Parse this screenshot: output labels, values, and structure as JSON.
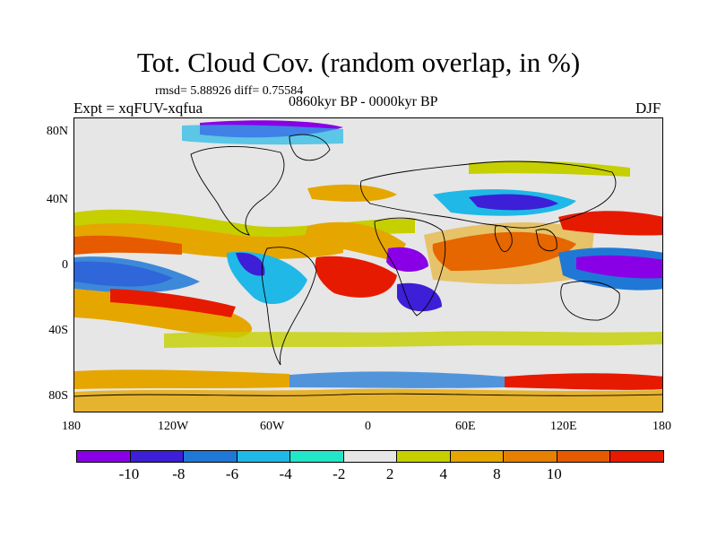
{
  "title": "Tot. Cloud Cov. (random overlap, in %)",
  "stats": "rmsd= 5.88926 diff= 0.75584",
  "expt": "Expt = xqFUV-xqfua",
  "period": "0860kyr BP - 0000kyr BP",
  "season": "DJF",
  "lat_labels": [
    "80N",
    "40N",
    "0",
    "40S",
    "80S"
  ],
  "lon_labels": [
    "180",
    "120W",
    "60W",
    "0",
    "60E",
    "120E",
    "180"
  ],
  "colorbar": {
    "colors": [
      "#8a00e6",
      "#3c1fd6",
      "#1f78d6",
      "#20b8e6",
      "#22e6c8",
      "#e6e6e6",
      "#c6cf00",
      "#e6a600",
      "#e68000",
      "#e65a00",
      "#e61a00"
    ],
    "labels": [
      "-10",
      "-8",
      "-6",
      "-4",
      "-2",
      "2",
      "4",
      "8",
      "10"
    ]
  }
}
